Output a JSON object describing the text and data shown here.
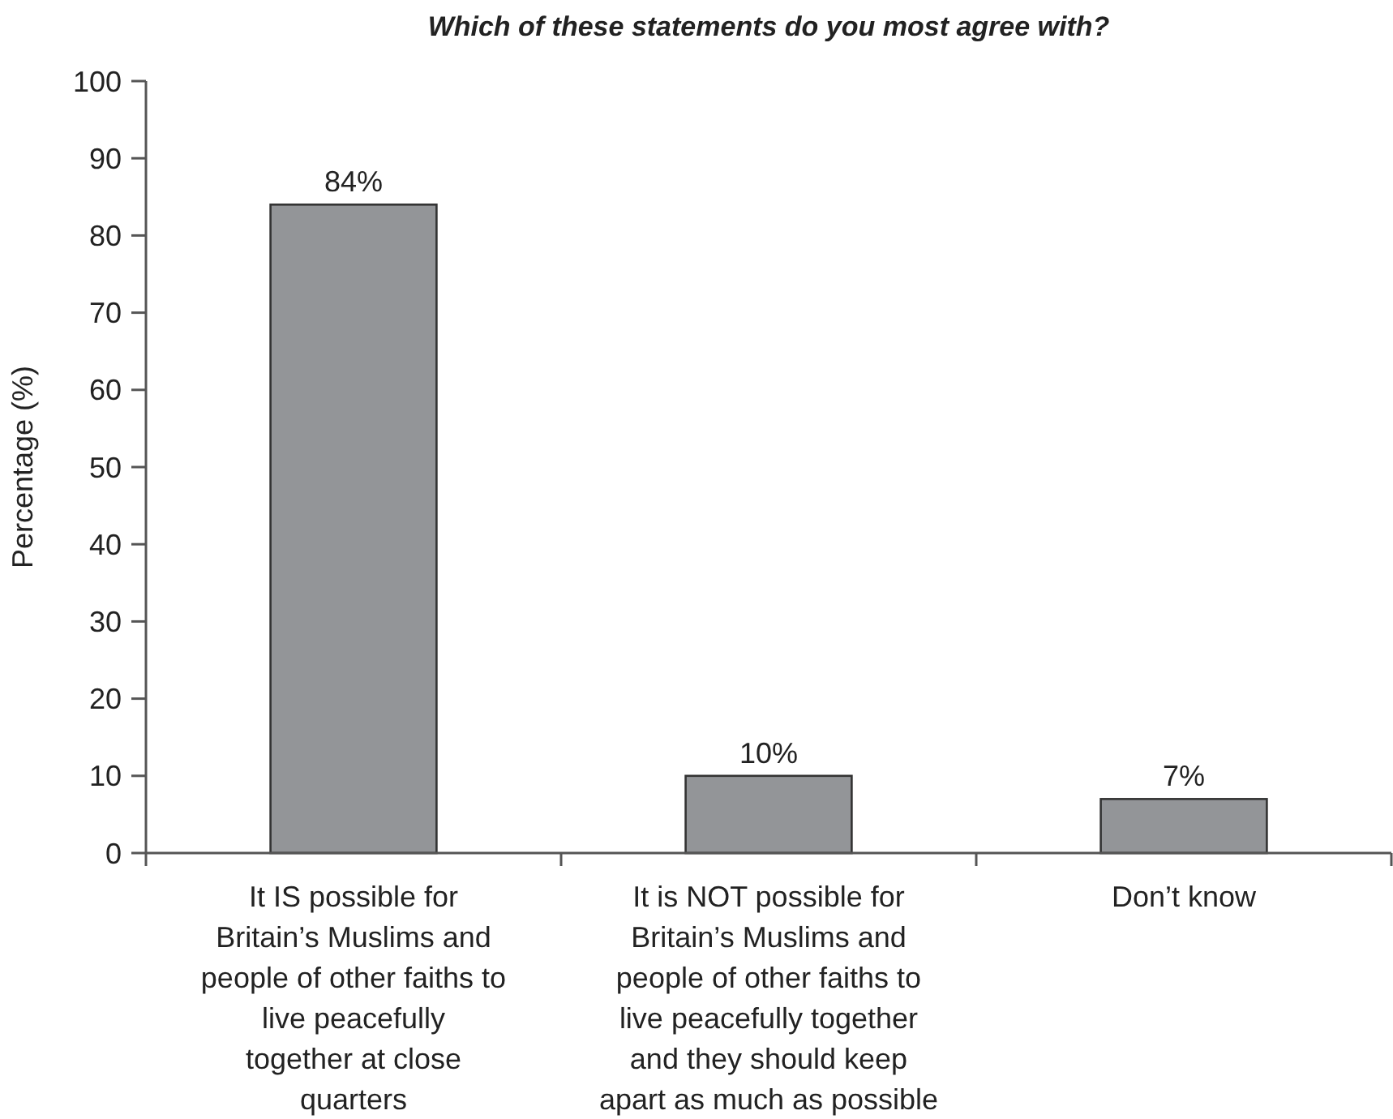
{
  "chart_data": {
    "type": "bar",
    "title": "Which of these statements do you most agree with?",
    "ylabel": "Percentage (%)",
    "categories": [
      "It IS possible for\nBritain’s Muslims and\npeople of other faiths to\nlive peacefully\ntogether at close\nquarters",
      "It is NOT possible for\nBritain’s Muslims and\npeople of other faiths to\nlive peacefully together\nand they should keep\napart as much as possible",
      "Don’t know"
    ],
    "values": [
      84,
      10,
      7
    ],
    "value_labels": [
      "84%",
      "10%",
      "7%"
    ],
    "color": "#939598",
    "ylim": [
      0,
      100
    ],
    "yticks": [
      0,
      10,
      20,
      30,
      40,
      50,
      60,
      70,
      80,
      90,
      100
    ]
  }
}
